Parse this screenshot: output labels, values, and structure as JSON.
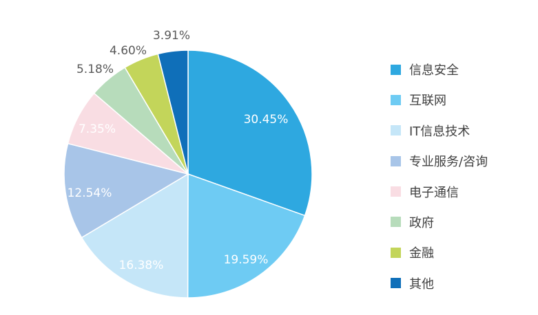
{
  "chart_data": {
    "type": "pie",
    "title": "",
    "categories": [
      "信息安全",
      "互联网",
      "IT信息技术",
      "专业服务/咨询",
      "电子通信",
      "政府",
      "金融",
      "其他"
    ],
    "values": [
      30.45,
      19.59,
      16.38,
      12.54,
      7.35,
      5.18,
      4.6,
      3.91
    ],
    "labels": [
      "30.45%",
      "19.59%",
      "16.38%",
      "12.54%",
      "7.35%",
      "5.18%",
      "4.60%",
      "3.91%"
    ],
    "colors": [
      "#2ea8e0",
      "#6ecbf3",
      "#c5e6f8",
      "#a8c5e8",
      "#f9dde3",
      "#b7dcbb",
      "#c3d55a",
      "#0f6fb9"
    ],
    "label_colors": [
      "#ffffff",
      "#ffffff",
      "#595959",
      "#ffffff",
      "#595959",
      "#595959",
      "#595959",
      "#595959"
    ],
    "label_placement": [
      "inside",
      "inside",
      "inside",
      "inside",
      "inside",
      "outside",
      "outside",
      "outside"
    ],
    "start_angle": "12 o'clock",
    "direction": "clockwise",
    "legend_position": "right"
  }
}
